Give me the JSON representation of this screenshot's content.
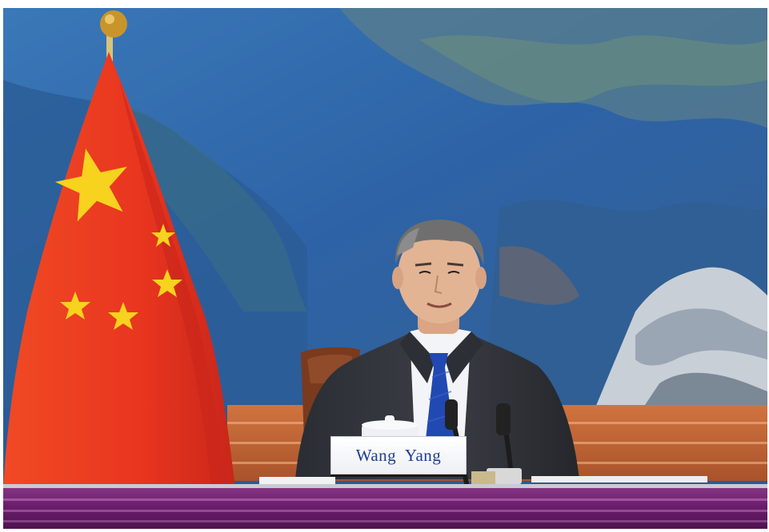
{
  "nameplate": {
    "text": "Wang  Yang"
  },
  "scene": {
    "subjects": [
      "flag-of-china",
      "seated-official",
      "landscape-mural",
      "conference-table",
      "microphones"
    ],
    "flag_colors": {
      "field": "#e8351f",
      "stars": "#f7d21e"
    },
    "mural_colors": {
      "sky": "#2e6bb0",
      "mountain": "#4a7fb8",
      "rock": "#c9cfd6"
    },
    "table_color": "#6b1d6d",
    "panel_color": "#c7683a"
  }
}
